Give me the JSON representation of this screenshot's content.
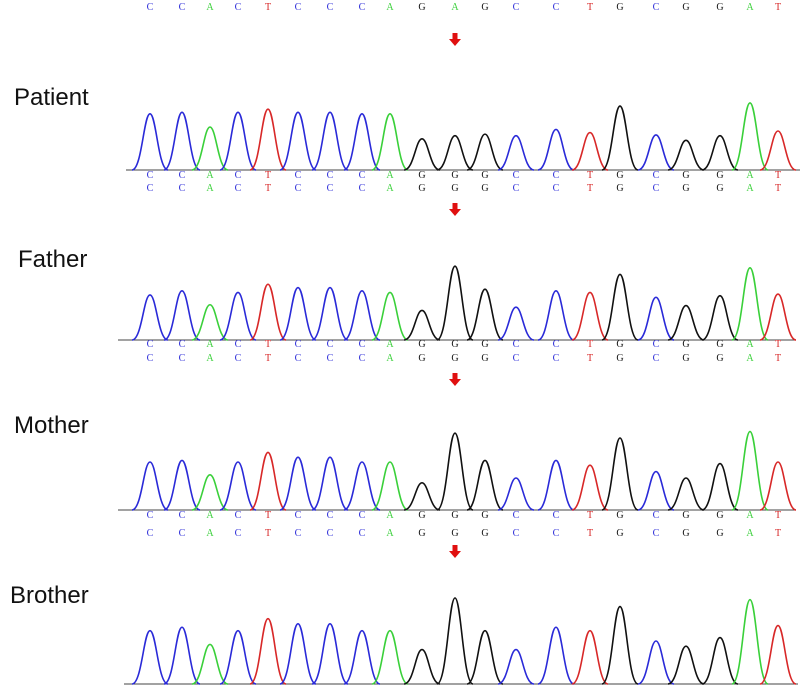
{
  "colors": {
    "A": "#3ad03a",
    "C": "#2a2ad8",
    "G": "#111111",
    "T": "#d82828",
    "arrow": "#e01010"
  },
  "reference_rows": [
    [
      "C",
      "C",
      "A",
      "C",
      "T",
      "C",
      "C",
      "C",
      "A",
      "G",
      "A",
      "G",
      "C",
      "C",
      "T",
      "G",
      "C",
      "G",
      "G",
      "A",
      "T"
    ]
  ],
  "panels": [
    {
      "label": "Patient",
      "peaks": [
        "C",
        "C",
        "A",
        "C",
        "T",
        "C",
        "C",
        "C",
        "A",
        "G",
        "G",
        "G",
        "C",
        "C",
        "T",
        "G",
        "C",
        "G",
        "G",
        "A",
        "T"
      ],
      "seq_rows": [
        [
          "C",
          "C",
          "A",
          "C",
          "T",
          "C",
          "C",
          "C",
          "A",
          "G",
          "G",
          "G",
          "C",
          "C",
          "T",
          "G",
          "C",
          "G",
          "G",
          "A",
          "T"
        ],
        [
          "C",
          "C",
          "A",
          "C",
          "T",
          "C",
          "C",
          "C",
          "A",
          "G",
          "G",
          "G",
          "C",
          "C",
          "T",
          "G",
          "C",
          "G",
          "G",
          "A",
          "T"
        ]
      ]
    },
    {
      "label": "Father",
      "peaks": [
        "C",
        "C",
        "A",
        "C",
        "T",
        "C",
        "C",
        "C",
        "A",
        "G",
        "G",
        "G",
        "C",
        "C",
        "T",
        "G",
        "C",
        "G",
        "G",
        "A",
        "T"
      ],
      "seq_rows": [
        [
          "C",
          "C",
          "A",
          "C",
          "T",
          "C",
          "C",
          "C",
          "A",
          "G",
          "G",
          "G",
          "C",
          "C",
          "T",
          "G",
          "C",
          "G",
          "G",
          "A",
          "T"
        ],
        [
          "C",
          "C",
          "A",
          "C",
          "T",
          "C",
          "C",
          "C",
          "A",
          "G",
          "G",
          "G",
          "C",
          "C",
          "T",
          "G",
          "C",
          "G",
          "G",
          "A",
          "T"
        ]
      ]
    },
    {
      "label": "Mother",
      "peaks": [
        "C",
        "C",
        "A",
        "C",
        "T",
        "C",
        "C",
        "C",
        "A",
        "G",
        "G",
        "G",
        "C",
        "C",
        "T",
        "G",
        "C",
        "G",
        "G",
        "A",
        "T"
      ],
      "seq_rows": [
        [
          "C",
          "C",
          "A",
          "C",
          "T",
          "C",
          "C",
          "C",
          "A",
          "G",
          "G",
          "G",
          "C",
          "C",
          "T",
          "G",
          "C",
          "G",
          "G",
          "A",
          "T"
        ],
        [
          "C",
          "C",
          "A",
          "C",
          "T",
          "C",
          "C",
          "C",
          "A",
          "G",
          "G",
          "G",
          "C",
          "C",
          "T",
          "G",
          "C",
          "G",
          "G",
          "A",
          "T"
        ]
      ]
    },
    {
      "label": "Brother",
      "peaks": [
        "C",
        "C",
        "A",
        "C",
        "T",
        "C",
        "C",
        "C",
        "A",
        "G",
        "G",
        "G",
        "C",
        "C",
        "T",
        "G",
        "C",
        "G",
        "G",
        "A",
        "T"
      ],
      "seq_rows": []
    }
  ]
}
